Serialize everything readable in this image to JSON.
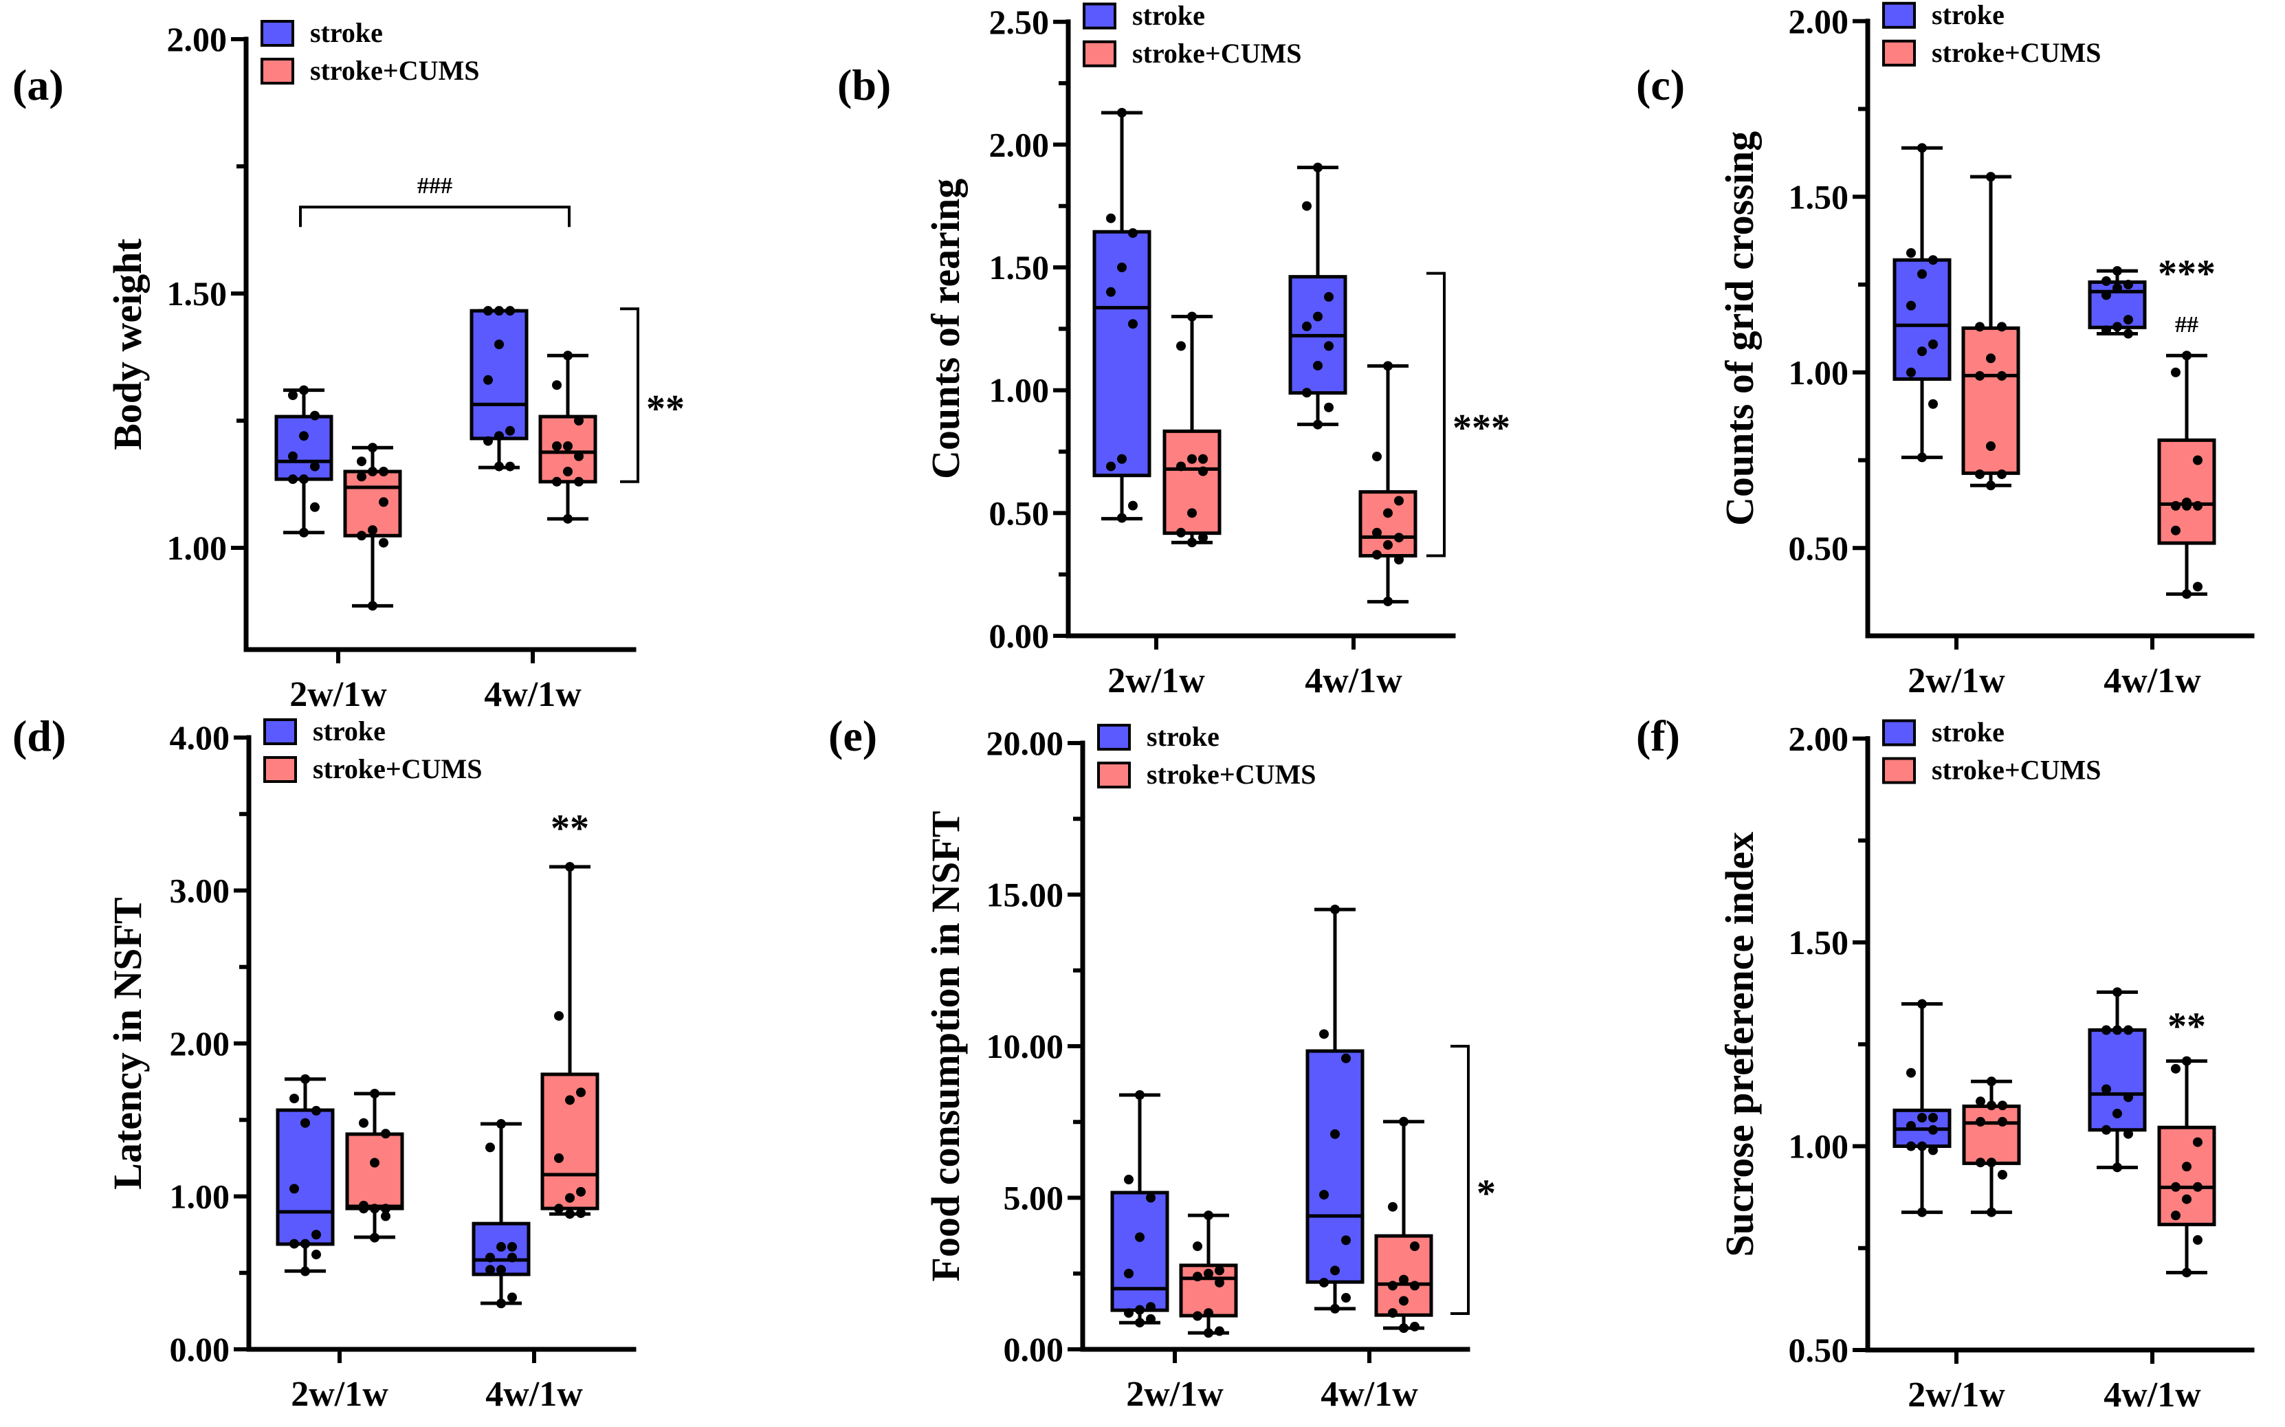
{
  "figure": {
    "colors": {
      "stroke": "#5a5aff",
      "stroke_cums": "#ff8080",
      "axis": "#000000"
    }
  },
  "chart_data": [
    {
      "id": "a",
      "type": "box",
      "panel_label": "(a)",
      "title": "",
      "ylabel": "Body weight",
      "xlabel": "",
      "categories": [
        "2w/1w",
        "4w/1w"
      ],
      "ylim": [
        0.8,
        2.0
      ],
      "yticks": [
        1.0,
        1.5,
        2.0
      ],
      "ytick_labels": [
        "1.00",
        "1.50",
        "2.00"
      ],
      "minor_ticks": [
        1.25,
        1.75
      ],
      "legend": [
        "stroke",
        "stroke+CUMS"
      ],
      "legend_position": "top-left",
      "series": [
        {
          "name": "stroke",
          "boxes": [
            {
              "min": 1.03,
              "q1": 1.135,
              "median": 1.17,
              "q3": 1.258,
              "max": 1.31,
              "points": [
                1.31,
                1.3,
                1.26,
                1.22,
                1.18,
                1.16,
                1.135,
                1.135,
                1.08,
                1.03
              ]
            },
            {
              "min": 1.158,
              "q1": 1.215,
              "median": 1.282,
              "q3": 1.466,
              "max": 1.466,
              "points": [
                1.466,
                1.466,
                1.466,
                1.4,
                1.33,
                1.23,
                1.22,
                1.21,
                1.16,
                1.16
              ]
            }
          ]
        },
        {
          "name": "stroke+CUMS",
          "boxes": [
            {
              "min": 0.886,
              "q1": 1.024,
              "median": 1.119,
              "q3": 1.15,
              "max": 1.197,
              "points": [
                1.197,
                1.17,
                1.15,
                1.15,
                1.14,
                1.09,
                1.035,
                1.024,
                1.01,
                0.886
              ]
            },
            {
              "min": 1.057,
              "q1": 1.13,
              "median": 1.188,
              "q3": 1.258,
              "max": 1.378,
              "points": [
                1.378,
                1.32,
                1.25,
                1.2,
                1.2,
                1.18,
                1.15,
                1.13,
                1.13,
                1.057
              ]
            }
          ]
        }
      ],
      "annotations": [
        {
          "text": "###",
          "type": "bracket-top",
          "from_category": "2w/1w",
          "to_category": "4w/1w",
          "y": 1.67
        },
        {
          "text": "**",
          "type": "bracket-right",
          "category": "4w/1w",
          "y_from": 1.13,
          "y_to": 1.47
        }
      ]
    },
    {
      "id": "b",
      "type": "box",
      "panel_label": "(b)",
      "title": "",
      "ylabel": "Counts of rearing",
      "xlabel": "",
      "categories": [
        "2w/1w",
        "4w/1w"
      ],
      "ylim": [
        0.0,
        2.5
      ],
      "yticks": [
        0.0,
        0.5,
        1.0,
        1.5,
        2.0,
        2.5
      ],
      "ytick_labels": [
        "0.00",
        "0.50",
        "1.00",
        "1.50",
        "2.00",
        "2.50"
      ],
      "minor_ticks": [
        0.25,
        0.75,
        1.25,
        1.75,
        2.25
      ],
      "legend": [
        "stroke",
        "stroke+CUMS"
      ],
      "legend_position": "top-left",
      "series": [
        {
          "name": "stroke",
          "boxes": [
            {
              "min": 0.477,
              "q1": 0.653,
              "median": 1.336,
              "q3": 1.645,
              "max": 2.13,
              "points": [
                2.13,
                1.7,
                1.64,
                1.5,
                1.4,
                1.27,
                0.72,
                0.69,
                0.53,
                0.48
              ]
            },
            {
              "min": 0.861,
              "q1": 0.989,
              "median": 1.222,
              "q3": 1.462,
              "max": 1.907,
              "points": [
                1.907,
                1.75,
                1.38,
                1.3,
                1.26,
                1.18,
                1.1,
                0.99,
                0.93,
                0.86
              ]
            }
          ]
        },
        {
          "name": "stroke+CUMS",
          "boxes": [
            {
              "min": 0.38,
              "q1": 0.418,
              "median": 0.679,
              "q3": 0.833,
              "max": 1.3,
              "points": [
                1.3,
                1.18,
                0.72,
                0.72,
                0.69,
                0.67,
                0.5,
                0.42,
                0.4,
                0.38
              ]
            },
            {
              "min": 0.139,
              "q1": 0.326,
              "median": 0.402,
              "q3": 0.586,
              "max": 1.099,
              "points": [
                1.099,
                0.73,
                0.55,
                0.5,
                0.42,
                0.4,
                0.37,
                0.33,
                0.31,
                0.14
              ]
            }
          ]
        }
      ],
      "annotations": [
        {
          "text": "***",
          "type": "bracket-right",
          "category": "4w/1w",
          "y_from": 0.326,
          "y_to": 1.476
        }
      ]
    },
    {
      "id": "c",
      "type": "box",
      "panel_label": "(c)",
      "title": "",
      "ylabel": "Counts of grid crossing",
      "xlabel": "",
      "categories": [
        "2w/1w",
        "4w/1w"
      ],
      "ylim": [
        0.25,
        2.0
      ],
      "yticks": [
        0.5,
        1.0,
        1.5,
        2.0
      ],
      "ytick_labels": [
        "0.50",
        "1.00",
        "1.50",
        "2.00"
      ],
      "minor_ticks": [
        0.75,
        1.25,
        1.75
      ],
      "legend": [
        "stroke",
        "stroke+CUMS"
      ],
      "legend_position": "top-left",
      "series": [
        {
          "name": "stroke",
          "boxes": [
            {
              "min": 0.758,
              "q1": 0.981,
              "median": 1.134,
              "q3": 1.32,
              "max": 1.639,
              "points": [
                1.639,
                1.34,
                1.32,
                1.28,
                1.19,
                1.08,
                1.06,
                1.0,
                0.91,
                0.758
              ]
            },
            {
              "min": 1.11,
              "q1": 1.128,
              "median": 1.23,
              "q3": 1.257,
              "max": 1.289,
              "points": [
                1.289,
                1.26,
                1.25,
                1.24,
                1.22,
                1.15,
                1.13,
                1.12,
                1.11
              ]
            }
          ]
        },
        {
          "name": "stroke+CUMS",
          "boxes": [
            {
              "min": 0.678,
              "q1": 0.713,
              "median": 0.991,
              "q3": 1.126,
              "max": 1.557,
              "points": [
                1.557,
                1.13,
                1.13,
                1.04,
                0.99,
                0.99,
                0.79,
                0.71,
                0.71,
                0.678
              ]
            },
            {
              "min": 0.369,
              "q1": 0.514,
              "median": 0.625,
              "q3": 0.807,
              "max": 1.048,
              "points": [
                1.048,
                1.0,
                0.75,
                0.63,
                0.62,
                0.62,
                0.62,
                0.55,
                0.39,
                0.369
              ]
            }
          ]
        }
      ],
      "annotations": [
        {
          "text": "***",
          "type": "above",
          "category": "4w/1w",
          "series": "stroke+CUMS",
          "y": 1.3
        },
        {
          "text": "##",
          "type": "above",
          "category": "4w/1w",
          "series": "stroke+CUMS",
          "y": 1.17
        }
      ]
    },
    {
      "id": "d",
      "type": "box",
      "panel_label": "(d)",
      "title": "",
      "ylabel": "Latency in NSFT",
      "xlabel": "",
      "categories": [
        "2w/1w",
        "4w/1w"
      ],
      "ylim": [
        0.0,
        4.0
      ],
      "yticks": [
        0.0,
        1.0,
        2.0,
        3.0,
        4.0
      ],
      "ytick_labels": [
        "0.00",
        "1.00",
        "2.00",
        "3.00",
        "4.00"
      ],
      "minor_ticks": [
        0.5,
        1.5,
        2.5,
        3.5
      ],
      "legend": [
        "stroke",
        "stroke+CUMS"
      ],
      "legend_position": "top-left",
      "series": [
        {
          "name": "stroke",
          "boxes": [
            {
              "min": 0.512,
              "q1": 0.688,
              "median": 0.899,
              "q3": 1.564,
              "max": 1.767,
              "points": [
                1.767,
                1.64,
                1.56,
                1.48,
                1.05,
                0.75,
                0.69,
                0.69,
                0.62,
                0.51
              ]
            },
            {
              "min": 0.301,
              "q1": 0.49,
              "median": 0.584,
              "q3": 0.822,
              "max": 1.474,
              "points": [
                1.474,
                1.32,
                0.67,
                0.67,
                0.6,
                0.6,
                0.52,
                0.52,
                0.34,
                0.3
              ]
            }
          ]
        },
        {
          "name": "stroke+CUMS",
          "boxes": [
            {
              "min": 0.733,
              "q1": 0.921,
              "median": 0.935,
              "q3": 1.407,
              "max": 1.672,
              "points": [
                1.672,
                1.48,
                1.41,
                1.22,
                0.94,
                0.92,
                0.92,
                0.92,
                0.87,
                0.73
              ]
            },
            {
              "min": 0.885,
              "q1": 0.921,
              "median": 1.142,
              "q3": 1.798,
              "max": 3.155,
              "points": [
                3.155,
                2.18,
                1.68,
                1.63,
                1.25,
                1.03,
                0.99,
                0.92,
                0.89,
                0.885
              ]
            }
          ]
        }
      ],
      "annotations": [
        {
          "text": "**",
          "type": "above",
          "category": "4w/1w",
          "series": "stroke+CUMS",
          "y": 3.45
        }
      ]
    },
    {
      "id": "e",
      "type": "box",
      "panel_label": "(e)",
      "title": "",
      "ylabel": "Food consumption in NSFT",
      "xlabel": "",
      "categories": [
        "2w/1w",
        "4w/1w"
      ],
      "ylim": [
        0.0,
        20.0
      ],
      "yticks": [
        0.0,
        5.0,
        10.0,
        15.0,
        20.0
      ],
      "ytick_labels": [
        "0.00",
        "5.00",
        "10.00",
        "15.00",
        "20.00"
      ],
      "minor_ticks": [
        2.5,
        7.5,
        12.5,
        17.5
      ],
      "legend": [
        "stroke",
        "stroke+CUMS"
      ],
      "legend_position": "top-left",
      "series": [
        {
          "name": "stroke",
          "boxes": [
            {
              "min": 0.88,
              "q1": 1.29,
              "median": 2.0,
              "q3": 5.17,
              "max": 8.39,
              "points": [
                8.39,
                5.6,
                5.0,
                3.7,
                2.5,
                1.4,
                1.3,
                1.2,
                1.0,
                0.88
              ]
            },
            {
              "min": 1.34,
              "q1": 2.22,
              "median": 4.4,
              "q3": 9.84,
              "max": 14.51,
              "points": [
                14.51,
                10.4,
                9.6,
                7.1,
                5.1,
                3.6,
                2.6,
                2.2,
                1.7,
                1.34
              ]
            }
          ]
        },
        {
          "name": "stroke+CUMS",
          "boxes": [
            {
              "min": 0.54,
              "q1": 1.11,
              "median": 2.34,
              "q3": 2.77,
              "max": 4.42,
              "points": [
                4.42,
                3.4,
                2.6,
                2.5,
                2.4,
                2.2,
                1.2,
                1.1,
                0.6,
                0.54
              ]
            },
            {
              "min": 0.7,
              "q1": 1.13,
              "median": 2.15,
              "q3": 3.74,
              "max": 7.51,
              "points": [
                7.51,
                4.7,
                3.4,
                2.3,
                2.1,
                2.1,
                1.6,
                1.2,
                0.75,
                0.7
              ]
            }
          ]
        }
      ],
      "annotations": [
        {
          "text": "*",
          "type": "bracket-right",
          "category": "4w/1w",
          "y_from": 1.18,
          "y_to": 10.0
        }
      ]
    },
    {
      "id": "f",
      "type": "box",
      "panel_label": "(f)",
      "title": "",
      "ylabel": "Sucrose preference index",
      "xlabel": "",
      "categories": [
        "2w/1w",
        "4w/1w"
      ],
      "ylim": [
        0.5,
        2.0
      ],
      "yticks": [
        0.5,
        1.0,
        1.5,
        2.0
      ],
      "ytick_labels": [
        "0.50",
        "1.00",
        "1.50",
        "2.00"
      ],
      "minor_ticks": [
        0.75,
        1.25,
        1.75
      ],
      "legend": [
        "stroke",
        "stroke+CUMS"
      ],
      "legend_position": "top-left",
      "series": [
        {
          "name": "stroke",
          "boxes": [
            {
              "min": 0.838,
              "q1": 1.0,
              "median": 1.042,
              "q3": 1.088,
              "max": 1.349,
              "points": [
                1.349,
                1.18,
                1.07,
                1.07,
                1.05,
                1.04,
                1.0,
                1.0,
                0.99,
                0.838
              ]
            },
            {
              "min": 0.948,
              "q1": 1.04,
              "median": 1.128,
              "q3": 1.285,
              "max": 1.378,
              "points": [
                1.378,
                1.285,
                1.285,
                1.285,
                1.14,
                1.12,
                1.08,
                1.04,
                1.03,
                0.948
              ]
            }
          ]
        },
        {
          "name": "stroke+CUMS",
          "boxes": [
            {
              "min": 0.838,
              "q1": 0.958,
              "median": 1.057,
              "q3": 1.098,
              "max": 1.159,
              "points": [
                1.159,
                1.11,
                1.1,
                1.1,
                1.06,
                1.06,
                0.96,
                0.96,
                0.93,
                0.838
              ]
            },
            {
              "min": 0.69,
              "q1": 0.808,
              "median": 0.899,
              "q3": 1.046,
              "max": 1.209,
              "points": [
                1.209,
                1.19,
                1.01,
                0.95,
                0.9,
                0.9,
                0.87,
                0.83,
                0.77,
                0.69
              ]
            }
          ]
        }
      ],
      "annotations": [
        {
          "text": "**",
          "type": "above",
          "category": "4w/1w",
          "series": "stroke+CUMS",
          "y": 1.31
        }
      ]
    }
  ]
}
